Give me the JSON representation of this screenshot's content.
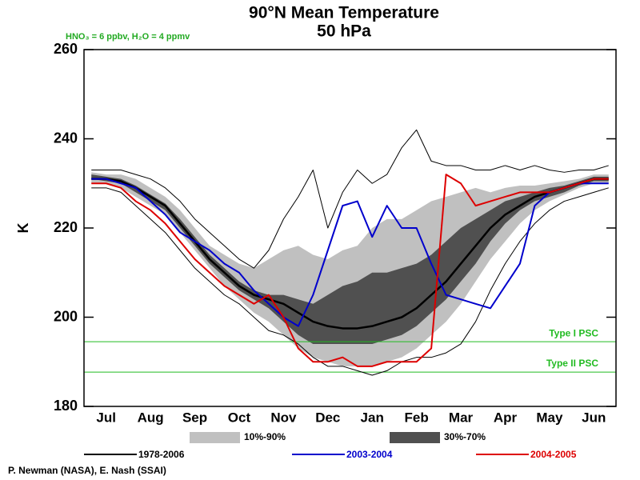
{
  "chart_data": {
    "type": "line",
    "title": "90°N Mean Temperature",
    "subtitle": "50 hPa",
    "annotation": "HNO₃ = 6 ppbv, H₂O = 4 ppmv",
    "credit": "P. Newman (NASA), E. Nash (SSAI)",
    "ylabel": "K",
    "categories": [
      null,
      "Jul",
      null,
      null,
      "Aug",
      null,
      null,
      "Sep",
      null,
      null,
      "Oct",
      null,
      null,
      "Nov",
      null,
      null,
      "Dec",
      null,
      null,
      "Jan",
      null,
      null,
      "Feb",
      null,
      null,
      "Mar",
      null,
      null,
      "Apr",
      null,
      null,
      "May",
      null,
      null,
      "Jun",
      null
    ],
    "ylim": [
      180,
      260
    ],
    "yticks": [
      180,
      200,
      220,
      240,
      260
    ],
    "hlines": [
      {
        "value": 194.5,
        "label": "Type I PSC"
      },
      {
        "value": 187.7,
        "label": "Type II PSC"
      }
    ],
    "hline_color": "#22bb22",
    "bands": [
      {
        "name": "10%-90%",
        "color": "#c0c0c0",
        "low": [
          230,
          230,
          229,
          227,
          225,
          223,
          219,
          215,
          211,
          207,
          204,
          201,
          199,
          196,
          193,
          191,
          190,
          189,
          189,
          189,
          190,
          191,
          193,
          196,
          199,
          203,
          208,
          213,
          217,
          221,
          224,
          226,
          227.5,
          229,
          230,
          230
        ],
        "high": [
          232.5,
          232,
          232,
          231,
          229,
          227,
          224,
          220,
          216,
          214,
          212,
          211,
          213,
          215,
          216,
          214,
          213,
          215,
          216,
          220,
          222,
          222,
          224,
          226,
          227,
          228,
          229,
          228,
          229,
          229.5,
          229.5,
          230,
          230.5,
          231,
          232,
          232
        ]
      },
      {
        "name": "30%-70%",
        "color": "#505050",
        "low": [
          231,
          230.5,
          230,
          228,
          226,
          224,
          220,
          216,
          212,
          209,
          206,
          204,
          202,
          199,
          196,
          194,
          194,
          194,
          194,
          194,
          195,
          196,
          198,
          201,
          204,
          208,
          212,
          217,
          221,
          224,
          226,
          227,
          228,
          229.5,
          230.5,
          230.5
        ],
        "high": [
          232,
          231.5,
          231,
          229.5,
          227.5,
          225.5,
          222,
          218,
          214,
          211,
          208,
          206,
          205,
          205,
          204,
          203,
          205,
          207,
          208,
          210,
          210,
          211,
          212,
          214,
          217,
          220,
          222,
          224,
          226,
          227,
          228,
          229,
          229.5,
          230.5,
          231.5,
          231.5
        ]
      }
    ],
    "series": [
      {
        "color": "#000000",
        "width": 1,
        "values": [
          233,
          233,
          233,
          232,
          231,
          229,
          226,
          222,
          219,
          216,
          213,
          211,
          215,
          222,
          227,
          233,
          220,
          228,
          233,
          230,
          232,
          238,
          242,
          235,
          234,
          234,
          233,
          233,
          234,
          233,
          234,
          233,
          232.5,
          233,
          233,
          234
        ]
      },
      {
        "color": "#000000",
        "width": 1,
        "values": [
          229,
          229,
          228,
          225,
          222,
          219,
          215,
          211,
          208,
          205,
          203,
          200,
          197,
          196,
          194,
          191,
          189,
          189,
          188,
          187,
          188,
          190,
          191,
          191,
          192,
          194,
          199,
          206,
          212,
          217,
          221,
          224,
          226,
          227,
          228,
          229
        ]
      },
      {
        "name": "1978-2006",
        "color": "#000000",
        "width": 2.5,
        "values": [
          231,
          231,
          230.5,
          229,
          227,
          225,
          221,
          217,
          213,
          210,
          207,
          205,
          204,
          203,
          201,
          199,
          198,
          197.5,
          197.5,
          198,
          199,
          200,
          202,
          205,
          208,
          212,
          216,
          220,
          223,
          225,
          227,
          228,
          229,
          230,
          231,
          231
        ]
      },
      {
        "name": "2003-2004",
        "color": "#0000cc",
        "width": 2,
        "values": [
          231,
          231,
          230,
          229,
          226,
          223,
          219,
          217,
          215,
          212,
          210,
          206,
          203,
          200,
          198,
          205,
          215,
          225,
          226,
          218,
          225,
          220,
          220,
          212,
          205,
          204,
          203,
          202,
          207,
          212,
          225,
          228,
          229,
          230,
          230,
          230
        ]
      },
      {
        "name": "2004-2005",
        "color": "#dd0000",
        "width": 2,
        "values": [
          230,
          230,
          229,
          226,
          224,
          221,
          217,
          213,
          210,
          207,
          205,
          203,
          205,
          200,
          193,
          190,
          190,
          191,
          189,
          189,
          190,
          190,
          190,
          193,
          232,
          230,
          225,
          226,
          227,
          228,
          228,
          228,
          229,
          230,
          231,
          231
        ]
      }
    ]
  }
}
